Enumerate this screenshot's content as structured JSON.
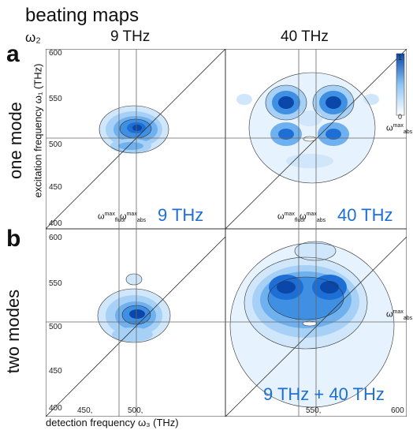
{
  "figure": {
    "title": "beating maps",
    "omega2_label": "ω₂",
    "column_freqs": [
      "9 THz",
      "40 THz"
    ],
    "panel_letters": [
      "a",
      "b"
    ],
    "row_labels": [
      "one mode",
      "two modes"
    ],
    "ylabel": "excitation frequency ω₁ (THz)",
    "xlabel": "detection frequency ω₃ (THz)",
    "y_ticks_top": [
      "600",
      "550",
      "500",
      "450",
      "400"
    ],
    "y_ticks_bottom": [
      "600",
      "550",
      "500",
      "450",
      "400"
    ],
    "x_ticks": [
      "400",
      "450,",
      "500,",
      "550,",
      "600"
    ],
    "panel_labels": [
      "9 THz",
      "40 THz",
      "9 THz + 40 THz"
    ],
    "colorbar": {
      "max": "1",
      "min": "0"
    },
    "annotations": {
      "omega_fluor": "ω",
      "omega_abs": "ω",
      "max": "max",
      "fluor": "fluor",
      "abs": "abs"
    }
  },
  "colors": {
    "accent": "#1d6fd6",
    "dark_blue": "#0a47a8",
    "line": "#555555"
  }
}
